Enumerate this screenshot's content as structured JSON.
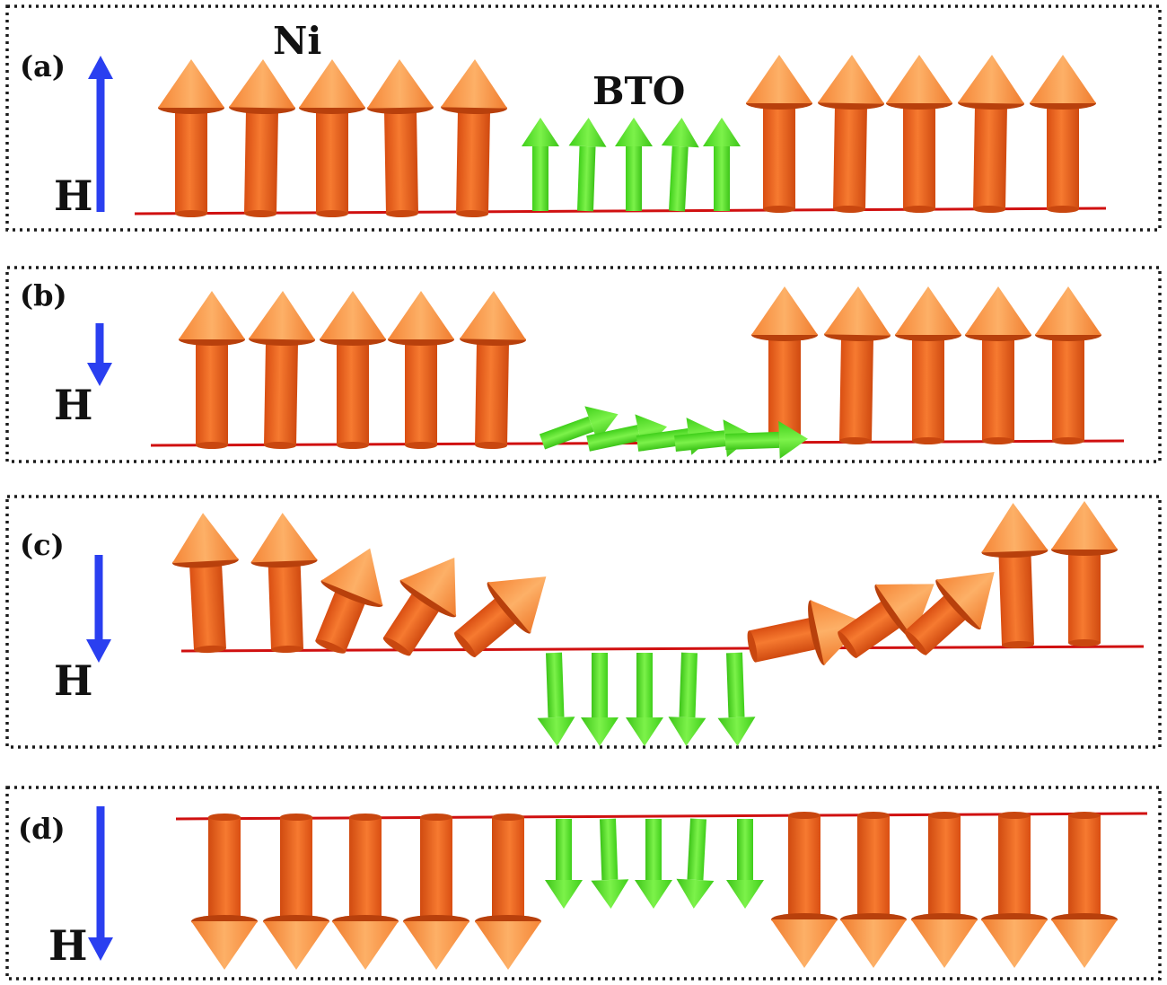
{
  "colors": {
    "ni_spin_body": "#f26a22",
    "ni_spin_tip": "#fb9a45",
    "bto_spin": "#58e62a",
    "field_arrow": "#2a3ff0",
    "interface_line": "#d01010",
    "frame": "#1a1a1a"
  },
  "materials": {
    "ni": "Ni",
    "bto": "BTO"
  },
  "panels": [
    {
      "label": "(a)",
      "field_symbol": "H",
      "field_direction": "up",
      "ni_spin_state": "all-up",
      "bto_spin_state": "up"
    },
    {
      "label": "(b)",
      "field_symbol": "H",
      "field_direction": "down",
      "ni_spin_state": "all-up",
      "bto_spin_state": "in-plane"
    },
    {
      "label": "(c)",
      "field_symbol": "H",
      "field_direction": "down",
      "ni_spin_state": "canted-near-interface",
      "bto_spin_state": "down"
    },
    {
      "label": "(d)",
      "field_symbol": "H",
      "field_direction": "down",
      "ni_spin_state": "all-down",
      "bto_spin_state": "down"
    }
  ]
}
